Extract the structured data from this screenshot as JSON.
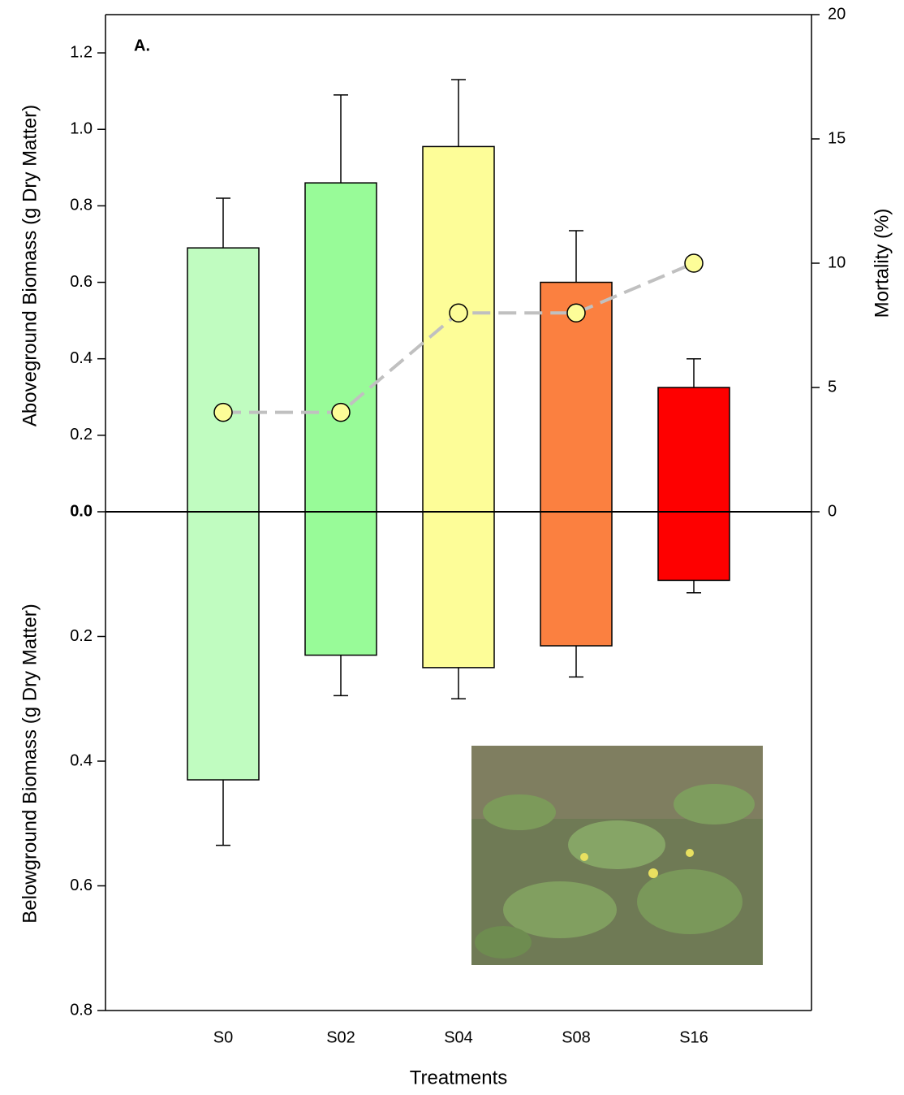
{
  "chart_data": [
    {
      "type": "bar",
      "panel_label": "A.",
      "ylabel": "Aboveground Biomass (g Dry Matter)",
      "categories": [
        "S0",
        "S02",
        "S04",
        "S08",
        "S16"
      ],
      "values": [
        0.69,
        0.86,
        0.955,
        0.6,
        0.325
      ],
      "errors": [
        0.13,
        0.23,
        0.175,
        0.135,
        0.075
      ],
      "colors": [
        "#c0fcc0",
        "#98fb98",
        "#fdfd98",
        "#fb8040",
        "#fe0000"
      ],
      "ylim": [
        0,
        1.3
      ],
      "yticks": [
        {
          "value": 0,
          "label": "0.0"
        },
        0.2,
        0.4,
        0.6,
        0.8,
        {
          "value": 1,
          "label": "1.0"
        },
        1.2
      ]
    },
    {
      "type": "bar",
      "ylabel": "Belowground Biomass (g Dry Matter)",
      "xlabel": "Treatments",
      "inverted": true,
      "values": [
        0.43,
        0.23,
        0.25,
        0.215,
        0.11
      ],
      "errors": [
        0.105,
        0.065,
        0.05,
        0.05,
        0.02
      ],
      "colors": [
        "#c0fcc0",
        "#98fb98",
        "#fdfd98",
        "#fb8040",
        "#fe0000"
      ],
      "ylim": [
        0,
        0.8
      ],
      "yticks": [
        0.2,
        0.4,
        0.6,
        0.8
      ]
    },
    {
      "type": "line",
      "y2label": "Mortality (%)",
      "axis": "y2",
      "values": [
        4,
        4,
        8,
        8,
        10
      ],
      "color": "#c0c0c0",
      "marker_color": "#fdfd98",
      "y2lim": [
        0,
        20
      ],
      "y2ticks": [
        0,
        5,
        10,
        15,
        20
      ]
    }
  ]
}
